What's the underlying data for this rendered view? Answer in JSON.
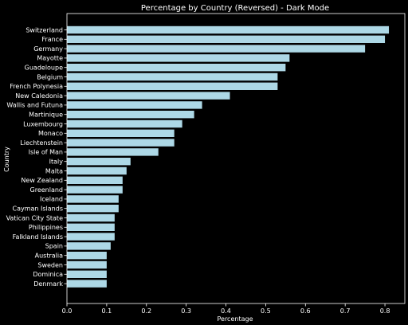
{
  "chart_data": {
    "type": "bar",
    "orientation": "horizontal",
    "title": "Percentage by Country (Reversed) - Dark Mode",
    "xlabel": "Percentage",
    "ylabel": "Country",
    "xlim": [
      0,
      0.85
    ],
    "xticks": [
      "0.0",
      "0.1",
      "0.2",
      "0.3",
      "0.4",
      "0.5",
      "0.6",
      "0.7",
      "0.8"
    ],
    "grid": false,
    "bar_color": "#add8e6",
    "background": "#000000",
    "foreground": "#ffffff",
    "categories": [
      "Switzerland",
      "France",
      "Germany",
      "Mayotte",
      "Guadeloupe",
      "Belgium",
      "French Polynesia",
      "New Caledonia",
      "Wallis and Futuna",
      "Martinique",
      "Luxembourg",
      "Monaco",
      "Liechtenstein",
      "Isle of Man",
      "Italy",
      "Malta",
      "New Zealand",
      "Greenland",
      "Iceland",
      "Cayman Islands",
      "Vatican City State",
      "Philippines",
      "Falkland Islands",
      "Spain",
      "Australia",
      "Sweden",
      "Dominica",
      "Denmark"
    ],
    "values": [
      0.81,
      0.8,
      0.75,
      0.56,
      0.55,
      0.53,
      0.53,
      0.41,
      0.34,
      0.32,
      0.29,
      0.27,
      0.27,
      0.23,
      0.16,
      0.15,
      0.14,
      0.14,
      0.13,
      0.13,
      0.12,
      0.12,
      0.12,
      0.11,
      0.1,
      0.1,
      0.1,
      0.1
    ]
  }
}
